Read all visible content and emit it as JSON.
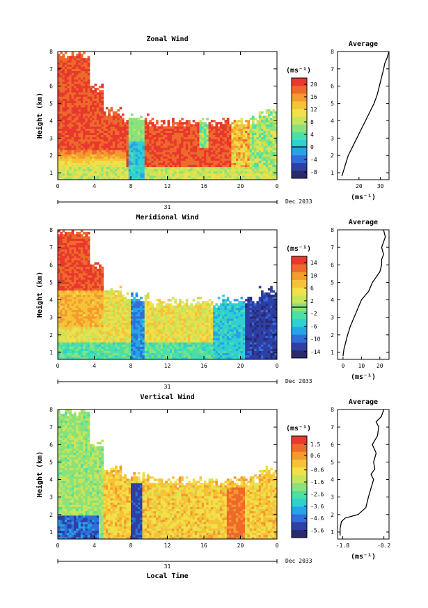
{
  "colors": {
    "scale": [
      "#2a2a6e",
      "#2f3fa6",
      "#2f6fd8",
      "#27a3e8",
      "#2fd0d0",
      "#49e0a8",
      "#8ae27a",
      "#c8e45a",
      "#f0e04a",
      "#f7c237",
      "#f49a2f",
      "#ee6a2a",
      "#e8382f"
    ],
    "missing": "#ffffff",
    "axis": "#000000"
  },
  "figure": {
    "date_label": "Dec 2033",
    "day_label": "31",
    "x_axis_label": "Local Time"
  },
  "chart_data": [
    {
      "type": "heatmap",
      "title": "Zonal Wind",
      "ylabel": "Height (km)",
      "x_ticks": [
        "0",
        "4",
        "8",
        "12",
        "16",
        "20",
        "0"
      ],
      "y_ticks": [
        "1",
        "2",
        "3",
        "4",
        "5",
        "6",
        "7",
        "8"
      ],
      "xlim": [
        0,
        24
      ],
      "ylim": [
        0.6,
        8
      ],
      "colorbar_unit": "(ms⁻¹)",
      "colorbar_ticks": [
        "20",
        "16",
        "12",
        "8",
        "4",
        "0",
        "-4",
        "-8"
      ],
      "clim": [
        -10,
        22
      ],
      "profile_title": "Average",
      "profile_xticks": [
        "20",
        "30"
      ],
      "profile_xlim": [
        10,
        34
      ],
      "profile_unit": "(ms⁻¹)",
      "profile": {
        "height": [
          0.8,
          1.2,
          1.6,
          2.0,
          2.5,
          3.0,
          3.5,
          4.0,
          4.5,
          5.0,
          5.5,
          6.0,
          6.5,
          7.0,
          7.3,
          7.6,
          8.0
        ],
        "value": [
          12,
          13,
          14,
          15,
          17,
          19,
          21,
          23,
          25,
          27,
          28.5,
          29.5,
          30.5,
          31.5,
          32,
          33,
          34
        ]
      }
    },
    {
      "type": "heatmap",
      "title": "Meridional Wind",
      "ylabel": "Height (km)",
      "x_ticks": [
        "0",
        "4",
        "8",
        "12",
        "16",
        "20",
        "0"
      ],
      "y_ticks": [
        "1",
        "2",
        "3",
        "4",
        "5",
        "6",
        "7",
        "8"
      ],
      "xlim": [
        0,
        24
      ],
      "ylim": [
        0.6,
        8
      ],
      "colorbar_unit": "(ms⁻¹)",
      "colorbar_ticks": [
        "14",
        "10",
        "6",
        "2",
        "-2",
        "-6",
        "-10",
        "-14"
      ],
      "clim": [
        -16,
        16
      ],
      "profile_title": "Average",
      "profile_xticks": [
        "0",
        "10",
        "20"
      ],
      "profile_xlim": [
        -3,
        25
      ],
      "profile_unit": "(ms⁻¹)",
      "profile": {
        "height": [
          0.8,
          1.2,
          1.6,
          2.0,
          2.5,
          3.0,
          3.5,
          4.0,
          4.5,
          5.0,
          5.3,
          5.6,
          6.0,
          6.3,
          6.6,
          7.0,
          7.3,
          7.6,
          8.0
        ],
        "value": [
          0,
          0.5,
          1.5,
          2.5,
          4,
          6,
          8,
          10,
          14,
          16,
          18,
          20,
          21,
          21,
          22,
          21,
          22,
          23,
          22
        ]
      }
    },
    {
      "type": "heatmap",
      "title": "Vertical Wind",
      "ylabel": "Height (km)",
      "x_ticks": [
        "0",
        "4",
        "8",
        "12",
        "16",
        "20",
        "0"
      ],
      "y_ticks": [
        "1",
        "2",
        "3",
        "4",
        "5",
        "6",
        "7",
        "8"
      ],
      "xlim": [
        0,
        24
      ],
      "ylim": [
        0.6,
        8
      ],
      "colorbar_unit": "(ms⁻¹)",
      "colorbar_ticks": [
        "1.5",
        "0.6",
        "-0.6",
        "-1.6",
        "-2.6",
        "-3.6",
        "-4.6",
        "-5.6"
      ],
      "clim": [
        -6.2,
        2.2
      ],
      "profile_title": "Average",
      "profile_xticks": [
        "-1.8",
        "-0.2"
      ],
      "profile_xlim": [
        -2.0,
        0.0
      ],
      "profile_unit": "(ms⁻¹)",
      "profile": {
        "height": [
          0.8,
          1.2,
          1.6,
          1.8,
          2.0,
          2.4,
          3.0,
          3.5,
          4.0,
          4.3,
          4.6,
          5.0,
          5.5,
          6.0,
          6.5,
          7.0,
          7.3,
          7.6,
          8.0
        ],
        "value": [
          -1.9,
          -1.9,
          -1.85,
          -1.7,
          -1.2,
          -0.9,
          -0.8,
          -0.7,
          -0.6,
          -0.7,
          -0.55,
          -0.6,
          -0.5,
          -0.65,
          -0.45,
          -0.4,
          -0.5,
          -0.3,
          -0.2
        ]
      }
    }
  ]
}
